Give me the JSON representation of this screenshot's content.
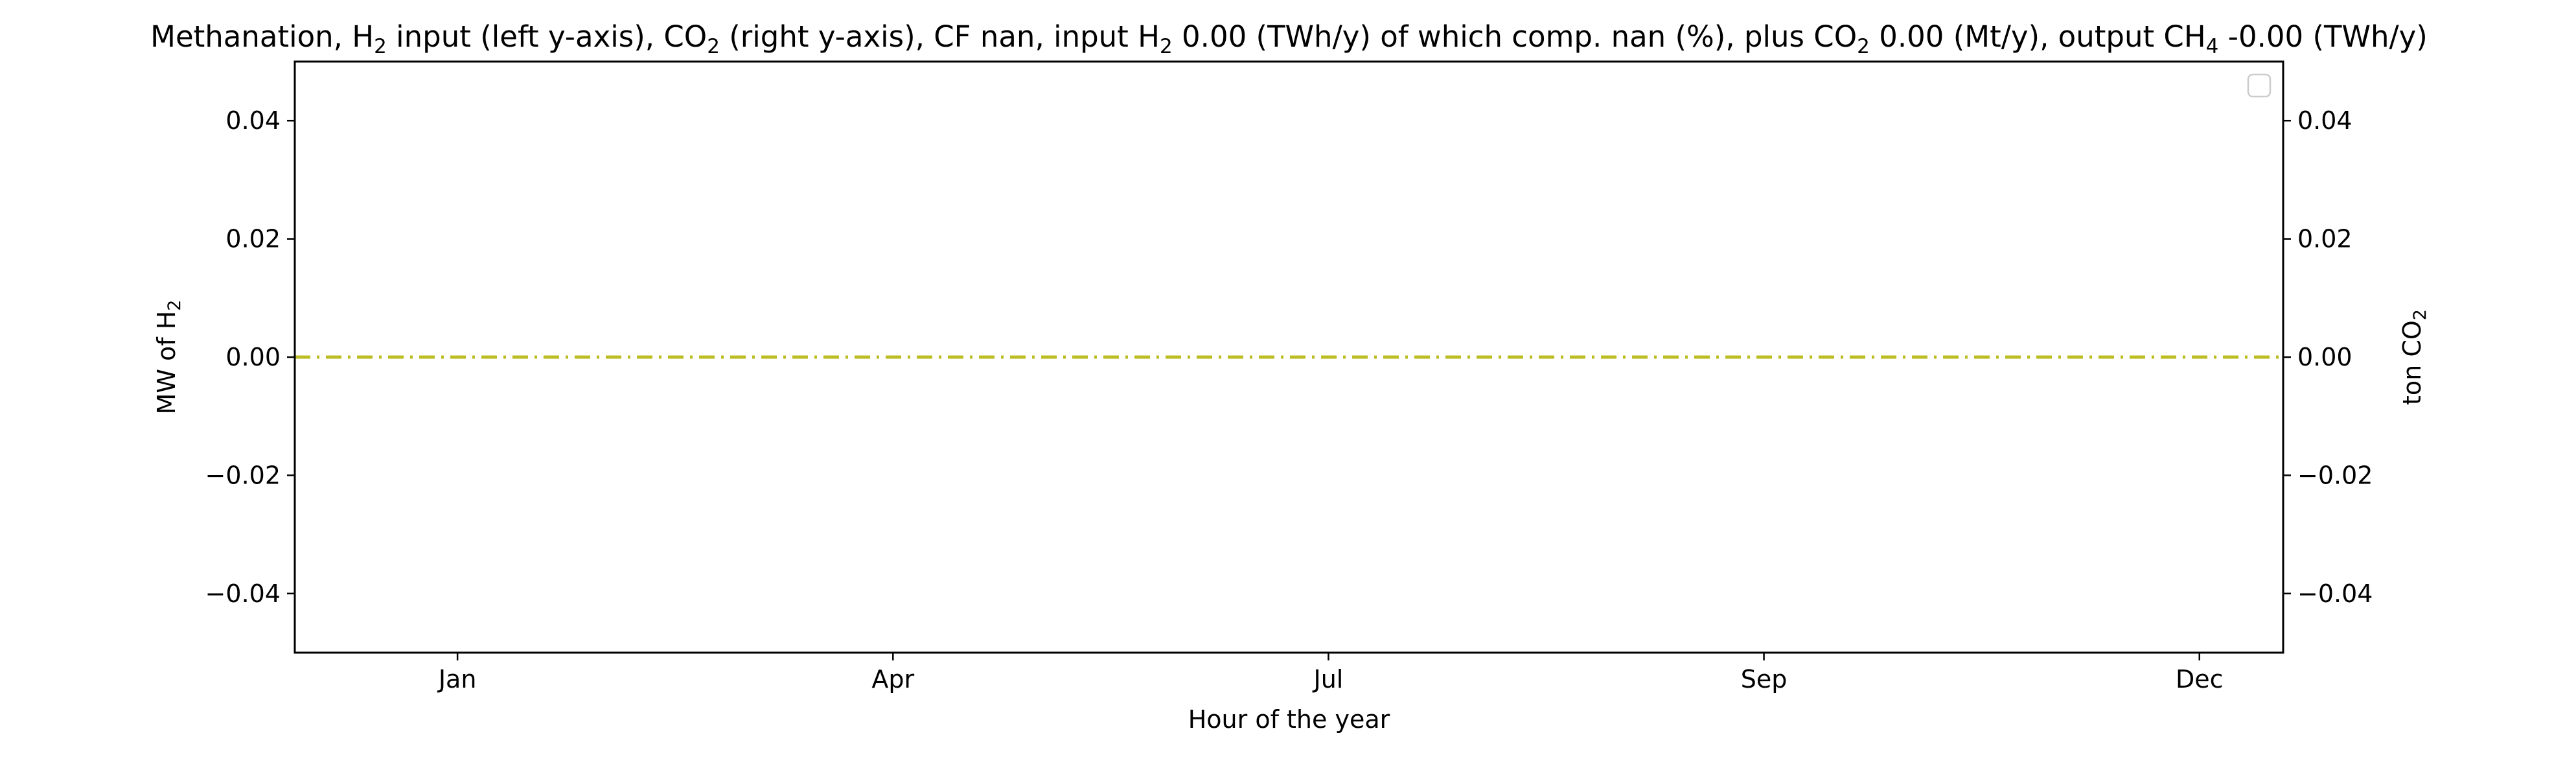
{
  "chart_data": {
    "type": "line",
    "title": "Methanation, H$_2$ input (left y-axis), CO$_2$ (right y-axis), CF nan, input H$_2$ 0.00 (TWh/y) of which comp. nan (%), plus CO$_2$ 0.00 (Mt/y), output CH$_4$ -0.00 (TWh/y)",
    "xlabel": "Hour of the year",
    "ylabel_left": "MW of H$_2$",
    "ylabel_right": "ton CO$_2$",
    "x_ticks": [
      {
        "label": "Jan",
        "hour": 744
      },
      {
        "label": "Apr",
        "hour": 2928
      },
      {
        "label": "Jul",
        "hour": 5112
      },
      {
        "label": "Sep",
        "hour": 7296
      },
      {
        "label": "Dec",
        "hour": 9480
      }
    ],
    "xlim": [
      -72,
      9900
    ],
    "ylim_left": [
      -0.05,
      0.05
    ],
    "ylim_right": [
      -0.05,
      0.05
    ],
    "y_ticks_left": [
      -0.04,
      -0.02,
      0.0,
      0.02,
      0.04
    ],
    "y_ticks_right": [
      -0.04,
      -0.02,
      0.0,
      0.02,
      0.04
    ],
    "y_tick_labels_left": [
      "−0.04",
      "−0.02",
      "0.00",
      "0.02",
      "0.04"
    ],
    "y_tick_labels_right": [
      "−0.04",
      "−0.02",
      "0.00",
      "0.02",
      "0.04"
    ],
    "series": [
      {
        "axis": "left",
        "color": "#bcbd22",
        "linestyle": "dashdot",
        "x": [
          -72,
          9900
        ],
        "values": [
          0.0,
          0.0
        ]
      }
    ],
    "legend": {
      "placement": "top-right",
      "entries": []
    },
    "grid": false
  }
}
